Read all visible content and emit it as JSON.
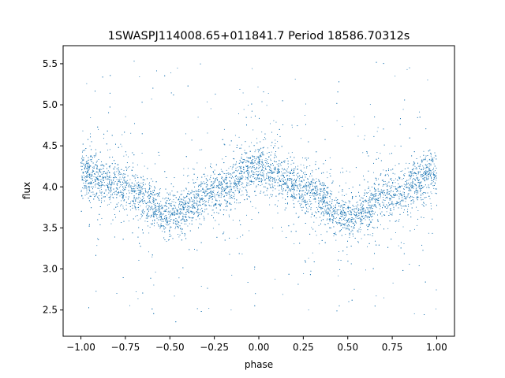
{
  "chart_data": {
    "type": "scatter",
    "title": "1SWASPJ114008.65+011841.7 Period 18586.70312s",
    "xlabel": "phase",
    "ylabel": "flux",
    "xlim": [
      -1.1,
      1.1
    ],
    "ylim": [
      2.18,
      5.72
    ],
    "xticks": [
      -1.0,
      -0.75,
      -0.5,
      -0.25,
      0.0,
      0.25,
      0.5,
      0.75,
      1.0
    ],
    "xtick_labels": [
      "−1.00",
      "−0.75",
      "−0.50",
      "−0.25",
      "0.00",
      "0.25",
      "0.50",
      "0.75",
      "1.00"
    ],
    "yticks": [
      2.5,
      3.0,
      3.5,
      4.0,
      4.5,
      5.0,
      5.5
    ],
    "ytick_labels": [
      "2.5",
      "3.0",
      "3.5",
      "4.0",
      "4.5",
      "5.0",
      "5.5"
    ],
    "grid": false,
    "series": [
      {
        "color": "#1f77b4",
        "trend": {
          "phase": [
            -1.0,
            -0.75,
            -0.5,
            -0.25,
            0.0,
            0.25,
            0.5,
            0.75,
            1.0
          ],
          "flux": [
            4.18,
            4.0,
            3.65,
            3.95,
            4.22,
            4.0,
            3.62,
            3.92,
            4.15
          ]
        }
      }
    ]
  }
}
